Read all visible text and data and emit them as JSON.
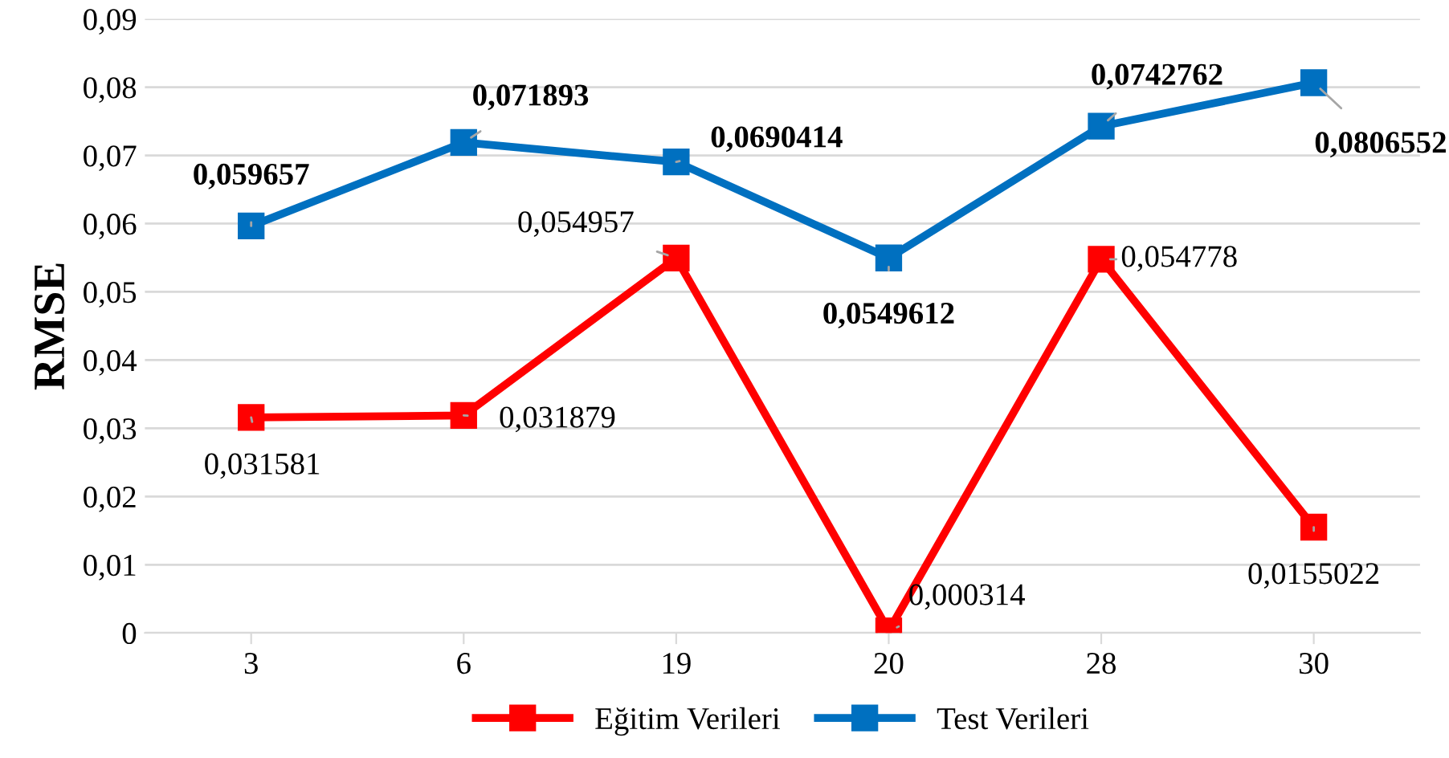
{
  "chart_data": {
    "type": "line",
    "ylabel": "RMSE",
    "categories": [
      "3",
      "6",
      "19",
      "20",
      "28",
      "30"
    ],
    "series": [
      {
        "name": "Eğitim Verileri",
        "color": "#ff0000",
        "values": [
          0.031581,
          0.031879,
          0.054957,
          0.000314,
          0.054778,
          0.0155022
        ],
        "value_labels": [
          "0,031581",
          "0,031879",
          "0,054957",
          "0,000314",
          "0,054778",
          "0,0155022"
        ]
      },
      {
        "name": "Test Verileri",
        "color": "#0070c0",
        "values": [
          0.059657,
          0.071893,
          0.0690414,
          0.0549612,
          0.0742762,
          0.0806552
        ],
        "value_labels": [
          "0,059657",
          "0,071893",
          "0,0690414",
          "0,0549612",
          "0,0742762",
          "0,0806552"
        ]
      }
    ],
    "ylim": [
      0,
      0.09
    ],
    "yticks": [
      0,
      {
        "value": 0.01,
        "label": "0,01"
      },
      {
        "value": 0.02,
        "label": "0,02"
      },
      {
        "value": 0.03,
        "label": "0,03"
      },
      {
        "value": 0.04,
        "label": "0,04"
      },
      {
        "value": 0.05,
        "label": "0,05"
      },
      {
        "value": 0.06,
        "label": "0,06"
      },
      {
        "value": 0.07,
        "label": "0,07"
      },
      {
        "value": 0.08,
        "label": "0,08"
      },
      {
        "value": 0.09,
        "label": "0,09"
      }
    ],
    "grid": "y",
    "legend": "bottom",
    "marker": "square",
    "line_style": "solid"
  }
}
